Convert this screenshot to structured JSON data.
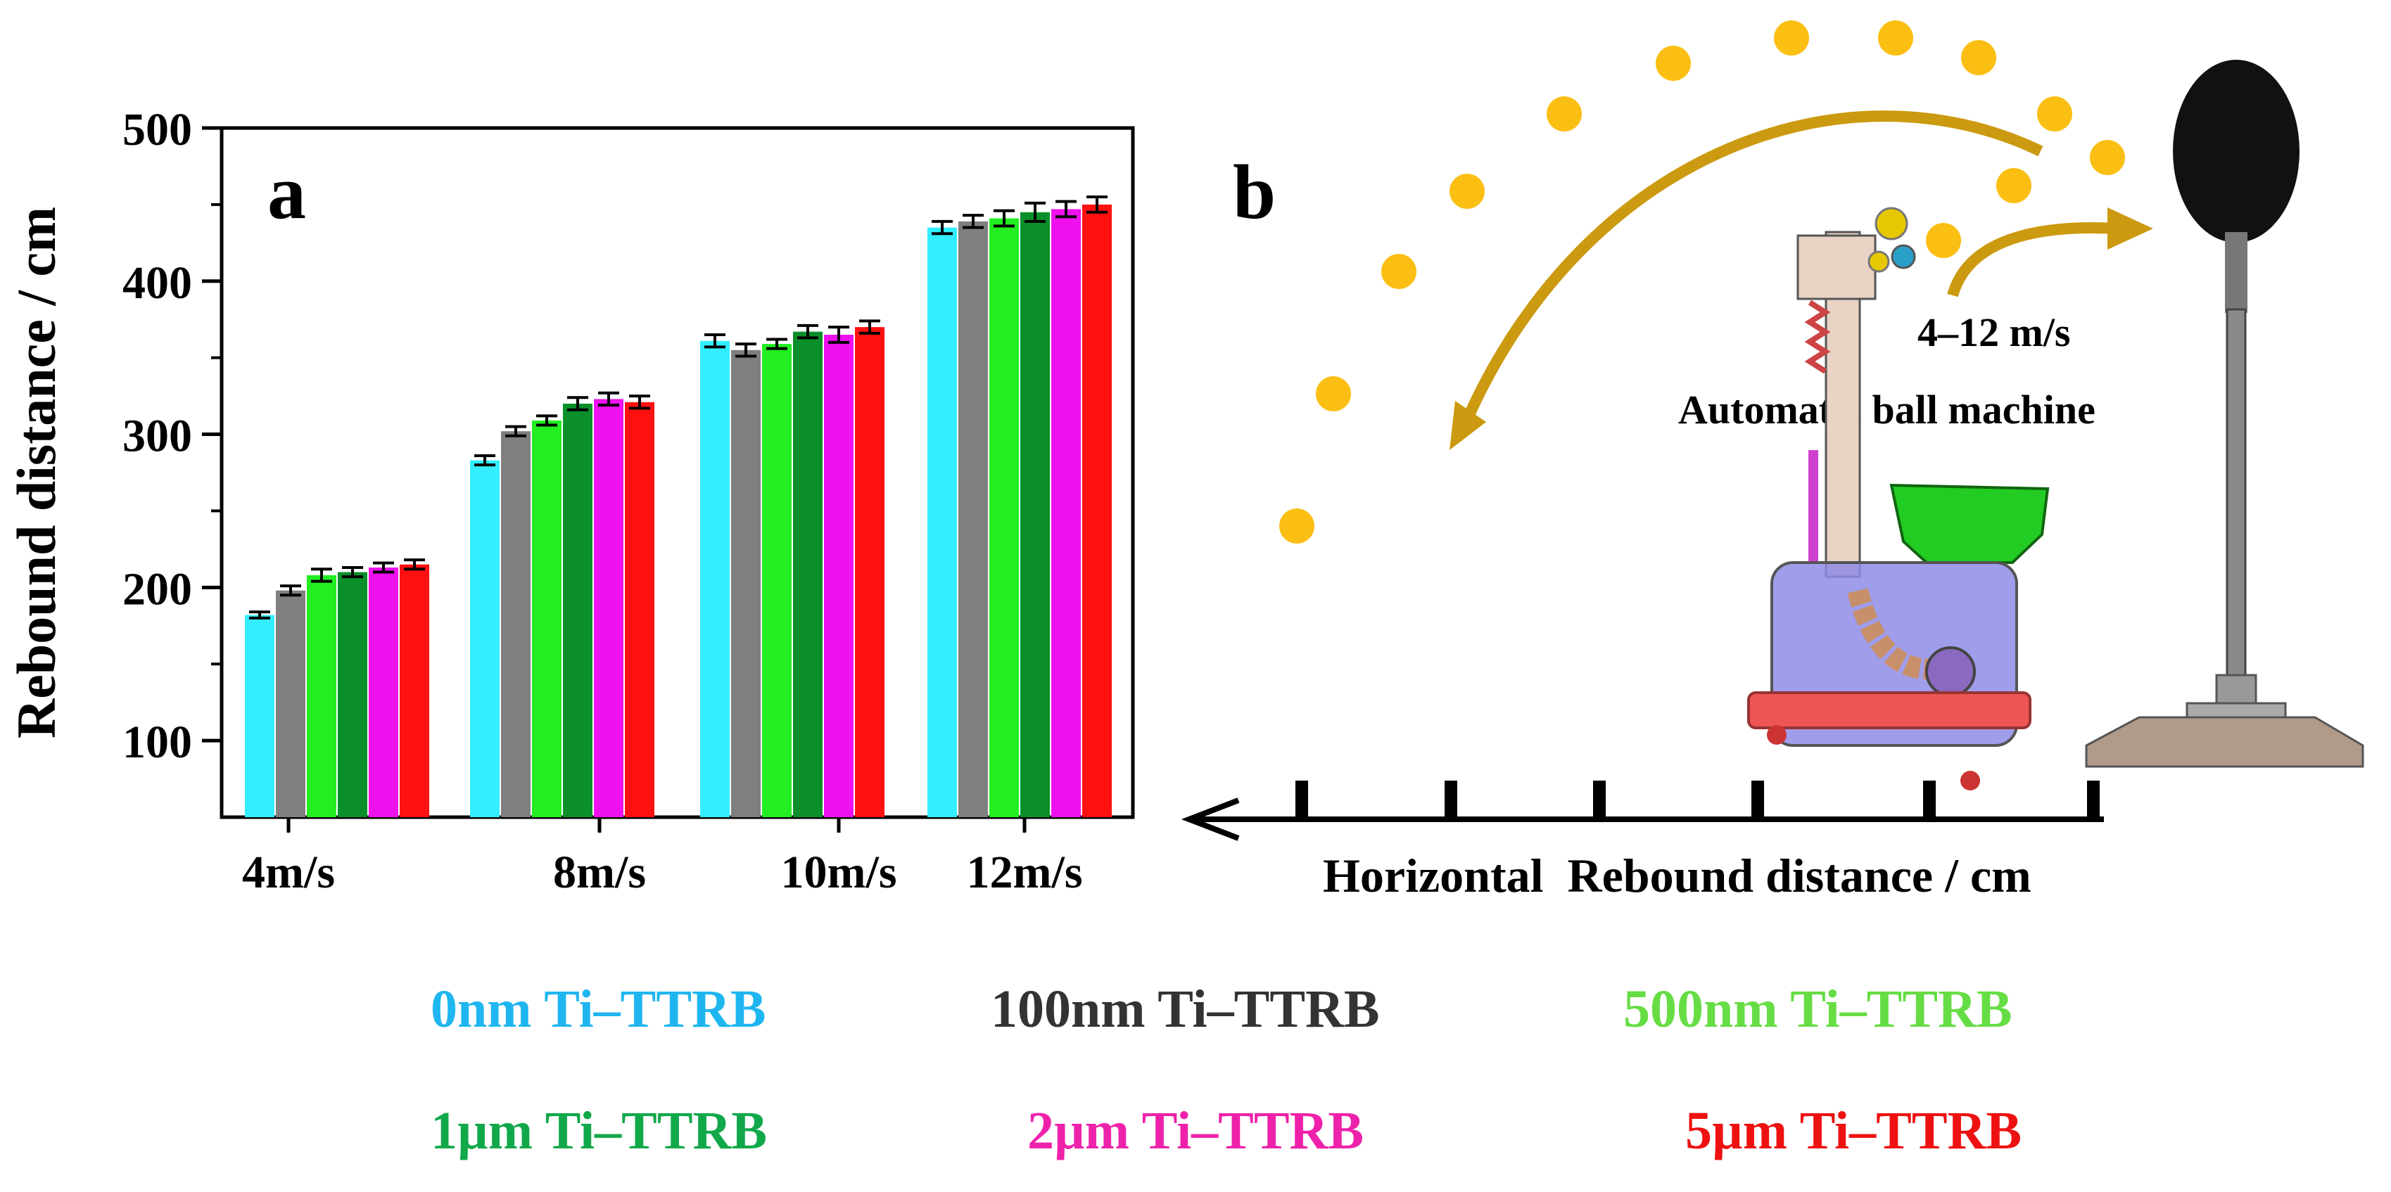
{
  "chart_data": {
    "type": "bar",
    "panel_label": "a",
    "ylabel": "Rebound distance / cm",
    "xlabel": "",
    "ylim": [
      50,
      500
    ],
    "yticks": [
      100,
      200,
      300,
      400,
      500
    ],
    "categories": [
      "4m/s",
      "8m/s",
      "10m/s",
      "12m/s"
    ],
    "series": [
      {
        "name": "0nm Ti–TTRB",
        "color": "#33eeff",
        "values": [
          182,
          283,
          361,
          435
        ],
        "errors": [
          2,
          3,
          4,
          4
        ]
      },
      {
        "name": "100nm Ti–TTRB",
        "color": "#7f7f7f",
        "values": [
          198,
          302,
          355,
          439
        ],
        "errors": [
          3,
          3,
          4,
          4
        ]
      },
      {
        "name": "500nm Ti–TTRB",
        "color": "#22ee22",
        "values": [
          208,
          309,
          359,
          441
        ],
        "errors": [
          4,
          3,
          3,
          5
        ]
      },
      {
        "name": "1µm Ti–TTRB",
        "color": "#0a8f2a",
        "values": [
          210,
          320,
          367,
          445
        ],
        "errors": [
          3,
          4,
          4,
          6
        ]
      },
      {
        "name": "2µm Ti–TTRB",
        "color": "#ee11ee",
        "values": [
          213,
          323,
          365,
          447
        ],
        "errors": [
          3,
          4,
          5,
          5
        ]
      },
      {
        "name": "5µm Ti–TTRB",
        "color": "#ff1111",
        "values": [
          215,
          321,
          370,
          450
        ],
        "errors": [
          3,
          4,
          4,
          5
        ]
      }
    ]
  },
  "diagram": {
    "panel_label": "b",
    "speed_label": "4–12 m/s",
    "machine_label": "Automatic ball machine",
    "axis_label": "Horizontal  Rebound distance / cm",
    "ball_color": "#fbbf14",
    "arrow_color": "#cc9a10"
  },
  "legend": [
    {
      "label": "0nm Ti–TTRB",
      "color": "#1fb6f0"
    },
    {
      "label": "100nm Ti–TTRB",
      "color": "#333333"
    },
    {
      "label": "500nm Ti–TTRB",
      "color": "#66dd44"
    },
    {
      "label": "1µm Ti–TTRB",
      "color": "#11a84a"
    },
    {
      "label": "2µm Ti–TTRB",
      "color": "#ee22aa"
    },
    {
      "label": "5µm Ti–TTRB",
      "color": "#ee1111"
    }
  ]
}
